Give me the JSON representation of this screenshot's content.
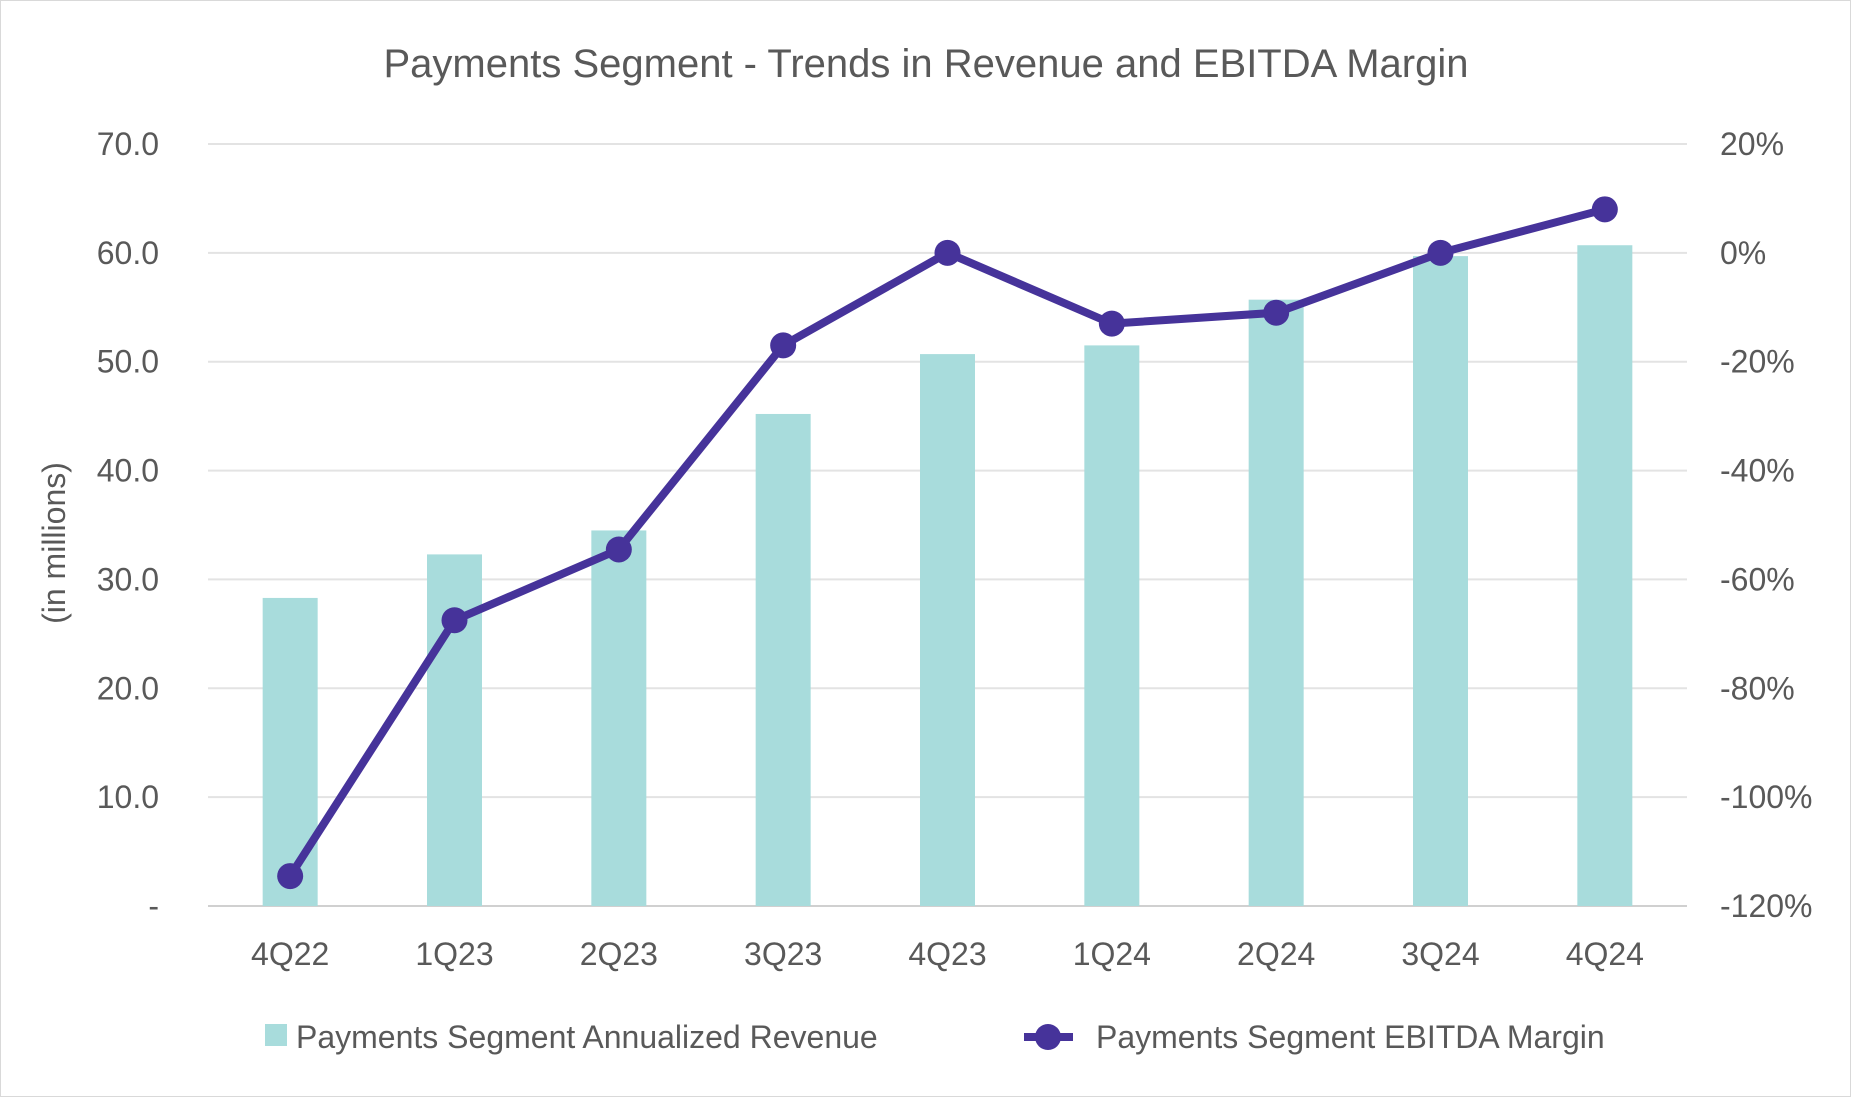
{
  "chart_data": {
    "type": "bar+line",
    "title": "Payments Segment - Trends in Revenue and EBITDA Margin",
    "categories": [
      "4Q22",
      "1Q23",
      "2Q23",
      "3Q23",
      "4Q23",
      "1Q24",
      "2Q24",
      "3Q24",
      "4Q24"
    ],
    "ylabel": "(in millions)",
    "y_left": {
      "min": 0,
      "max": 70,
      "step": 10,
      "tick_labels": [
        "-",
        "10.0",
        "20.0",
        "30.0",
        "40.0",
        "50.0",
        "60.0",
        "70.0"
      ]
    },
    "y_right": {
      "min": -120,
      "max": 20,
      "step": 20,
      "tick_labels": [
        "-120%",
        "-100%",
        "-80%",
        "-60%",
        "-40%",
        "-20%",
        "0%",
        "20%"
      ]
    },
    "series": [
      {
        "name": "Payments Segment Annualized Revenue",
        "type": "bar",
        "axis": "left",
        "color": "#a8dcdc",
        "values": [
          28.3,
          32.3,
          34.5,
          45.2,
          50.7,
          51.5,
          55.7,
          59.7,
          60.7
        ]
      },
      {
        "name": "Payments Segment EBITDA Margin",
        "type": "line",
        "axis": "right",
        "color": "#46339a",
        "values": [
          -114.5,
          -67.5,
          -54.5,
          -17,
          0,
          -13,
          -11,
          0,
          8
        ]
      }
    ],
    "grid": true,
    "legend": "bottom"
  }
}
